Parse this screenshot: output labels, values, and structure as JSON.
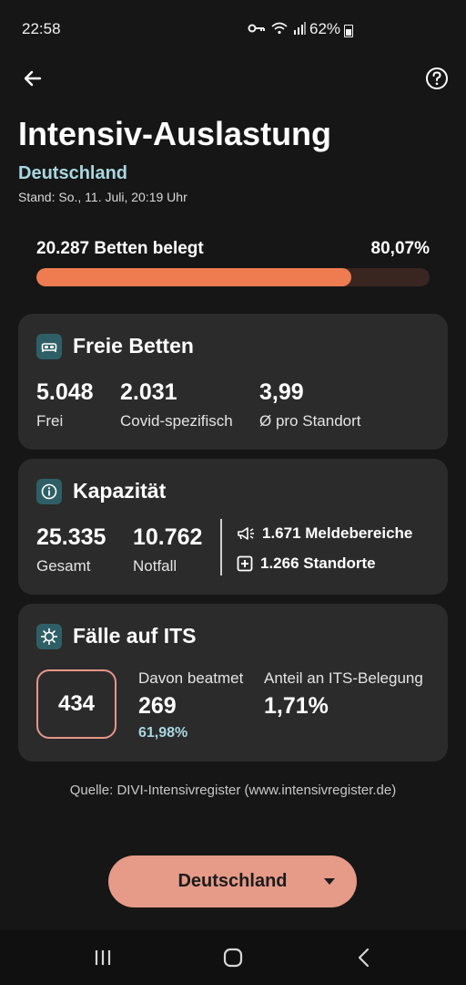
{
  "status_bar": {
    "time": "22:58",
    "battery_pct": "62%",
    "icons": [
      "key-icon",
      "wifi-icon",
      "signal-icon",
      "battery-icon"
    ]
  },
  "header": {
    "back_icon": "arrow-left-icon",
    "help_icon": "help-circle-icon",
    "title": "Intensiv-Auslastung",
    "region": "Deutschland",
    "stand": "Stand: So., 11. Juli, 20:19 Uhr"
  },
  "occupancy": {
    "label": "20.287 Betten belegt",
    "percent_text": "80,07%",
    "fill_fraction": 0.8007,
    "colors": {
      "fill": "#ee7c50",
      "track": "#3a2620"
    }
  },
  "free_beds": {
    "title": "Freie Betten",
    "icon": "bed-icon",
    "stats": [
      {
        "value": "5.048",
        "label": "Frei"
      },
      {
        "value": "2.031",
        "label": "Covid-spezifisch"
      },
      {
        "value": "3,99",
        "label": "Ø pro Standort"
      }
    ]
  },
  "capacity": {
    "title": "Kapazität",
    "icon": "info-icon",
    "stats": [
      {
        "value": "25.335",
        "label": "Gesamt"
      },
      {
        "value": "10.762",
        "label": "Notfall"
      }
    ],
    "meta": [
      {
        "icon": "megaphone-icon",
        "text": "1.671 Meldebereiche"
      },
      {
        "icon": "hospital-plus-icon",
        "text": "1.266 Standorte"
      }
    ]
  },
  "cases": {
    "title": "Fälle auf ITS",
    "icon": "virus-icon",
    "total": "434",
    "ventilated_label": "Davon beatmet",
    "ventilated_value": "269",
    "ventilated_pct": "61,98%",
    "share_label": "Anteil an ITS-Belegung",
    "share_value": "1,71%"
  },
  "source": "Quelle: DIVI-Intensivregister (www.intensivregister.de)",
  "country_selector": {
    "label": "Deutschland",
    "caret_icon": "dropdown-caret-icon",
    "color": "#e69a88"
  },
  "nav": {
    "recent_icon": "recent-apps-icon",
    "home_icon": "home-icon",
    "back_icon": "nav-back-icon"
  },
  "colors": {
    "background": "#161616",
    "card": "#2b2b2b",
    "accent_teal": "#a9d7e0",
    "icon_bg": "#2f5f66"
  }
}
